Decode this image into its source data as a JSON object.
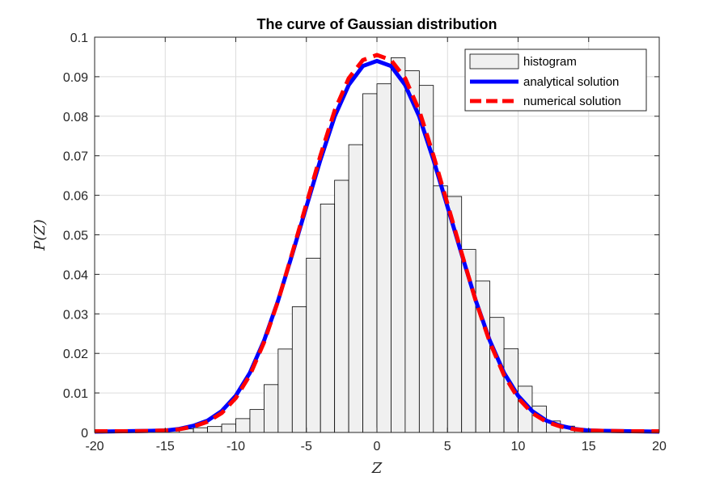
{
  "chart_data": {
    "type": "bar",
    "title": "The curve of Gaussian distribution",
    "xlabel": "Z",
    "ylabel": "P(Z)",
    "xlim": [
      -20,
      20
    ],
    "ylim": [
      0,
      0.1
    ],
    "xticks": [
      "-20",
      "-15",
      "-10",
      "-5",
      "0",
      "5",
      "10",
      "15",
      "20"
    ],
    "yticks": [
      "0",
      "0.01",
      "0.02",
      "0.03",
      "0.04",
      "0.05",
      "0.06",
      "0.07",
      "0.08",
      "0.09",
      "0.1"
    ],
    "grid": true,
    "legend_position": "top-right",
    "histogram": {
      "name": "histogram",
      "color": "#f0f0f0",
      "edge_color": "#000000",
      "bin_edges": [
        -15,
        -14,
        -13,
        -12,
        -11,
        -10,
        -9,
        -8,
        -7,
        -6,
        -5,
        -4,
        -3,
        -2,
        -1,
        0,
        1,
        2,
        3,
        4,
        5,
        6,
        7,
        8,
        9,
        10,
        11,
        12,
        13,
        14,
        15
      ],
      "values": [
        0.0008,
        0.0009,
        0.0012,
        0.0015,
        0.0021,
        0.0035,
        0.0058,
        0.0121,
        0.0211,
        0.0318,
        0.0441,
        0.0578,
        0.0638,
        0.0728,
        0.0857,
        0.0882,
        0.0948,
        0.0915,
        0.0878,
        0.0624,
        0.0597,
        0.0463,
        0.0383,
        0.0291,
        0.0212,
        0.0117,
        0.0067,
        0.0029,
        0.0016,
        0.0007
      ]
    },
    "series": [
      {
        "name": "analytical solution",
        "color": "#0000ff",
        "style": "solid",
        "x": [
          -20,
          -18,
          -16,
          -15,
          -14,
          -13,
          -12,
          -11,
          -10,
          -9,
          -8,
          -7,
          -6,
          -5,
          -4,
          -3,
          -2,
          -1,
          0,
          1,
          2,
          3,
          4,
          5,
          6,
          7,
          8,
          9,
          10,
          11,
          12,
          13,
          14,
          15,
          16,
          18,
          20
        ],
        "y": [
          0.0002,
          0.0003,
          0.0004,
          0.0005,
          0.0009,
          0.0017,
          0.003,
          0.0054,
          0.0093,
          0.0151,
          0.0232,
          0.0334,
          0.0451,
          0.0571,
          0.069,
          0.0799,
          0.0879,
          0.0927,
          0.094,
          0.0927,
          0.0879,
          0.0799,
          0.069,
          0.0571,
          0.0451,
          0.0334,
          0.0232,
          0.0151,
          0.0093,
          0.0054,
          0.003,
          0.0017,
          0.0009,
          0.0005,
          0.0004,
          0.0003,
          0.0002
        ]
      },
      {
        "name": "numerical solution",
        "color": "#ff0000",
        "style": "dashed",
        "x": [
          -20,
          -18,
          -16,
          -15,
          -14,
          -13,
          -12,
          -11,
          -10,
          -9,
          -8,
          -7,
          -6,
          -5,
          -4,
          -3,
          -2,
          -1,
          0,
          1,
          2,
          3,
          4,
          5,
          6,
          7,
          8,
          9,
          10,
          11,
          12,
          13,
          14,
          15,
          16,
          18,
          20
        ],
        "y": [
          0.0003,
          0.0003,
          0.0004,
          0.0005,
          0.0008,
          0.0015,
          0.0027,
          0.0049,
          0.0087,
          0.0145,
          0.0228,
          0.0333,
          0.0454,
          0.0578,
          0.0701,
          0.0814,
          0.0896,
          0.0942,
          0.0955,
          0.0942,
          0.0896,
          0.0814,
          0.0701,
          0.0578,
          0.0454,
          0.0333,
          0.0228,
          0.0145,
          0.0087,
          0.0049,
          0.0027,
          0.0015,
          0.0008,
          0.0005,
          0.0004,
          0.0003,
          0.0003
        ]
      }
    ]
  }
}
